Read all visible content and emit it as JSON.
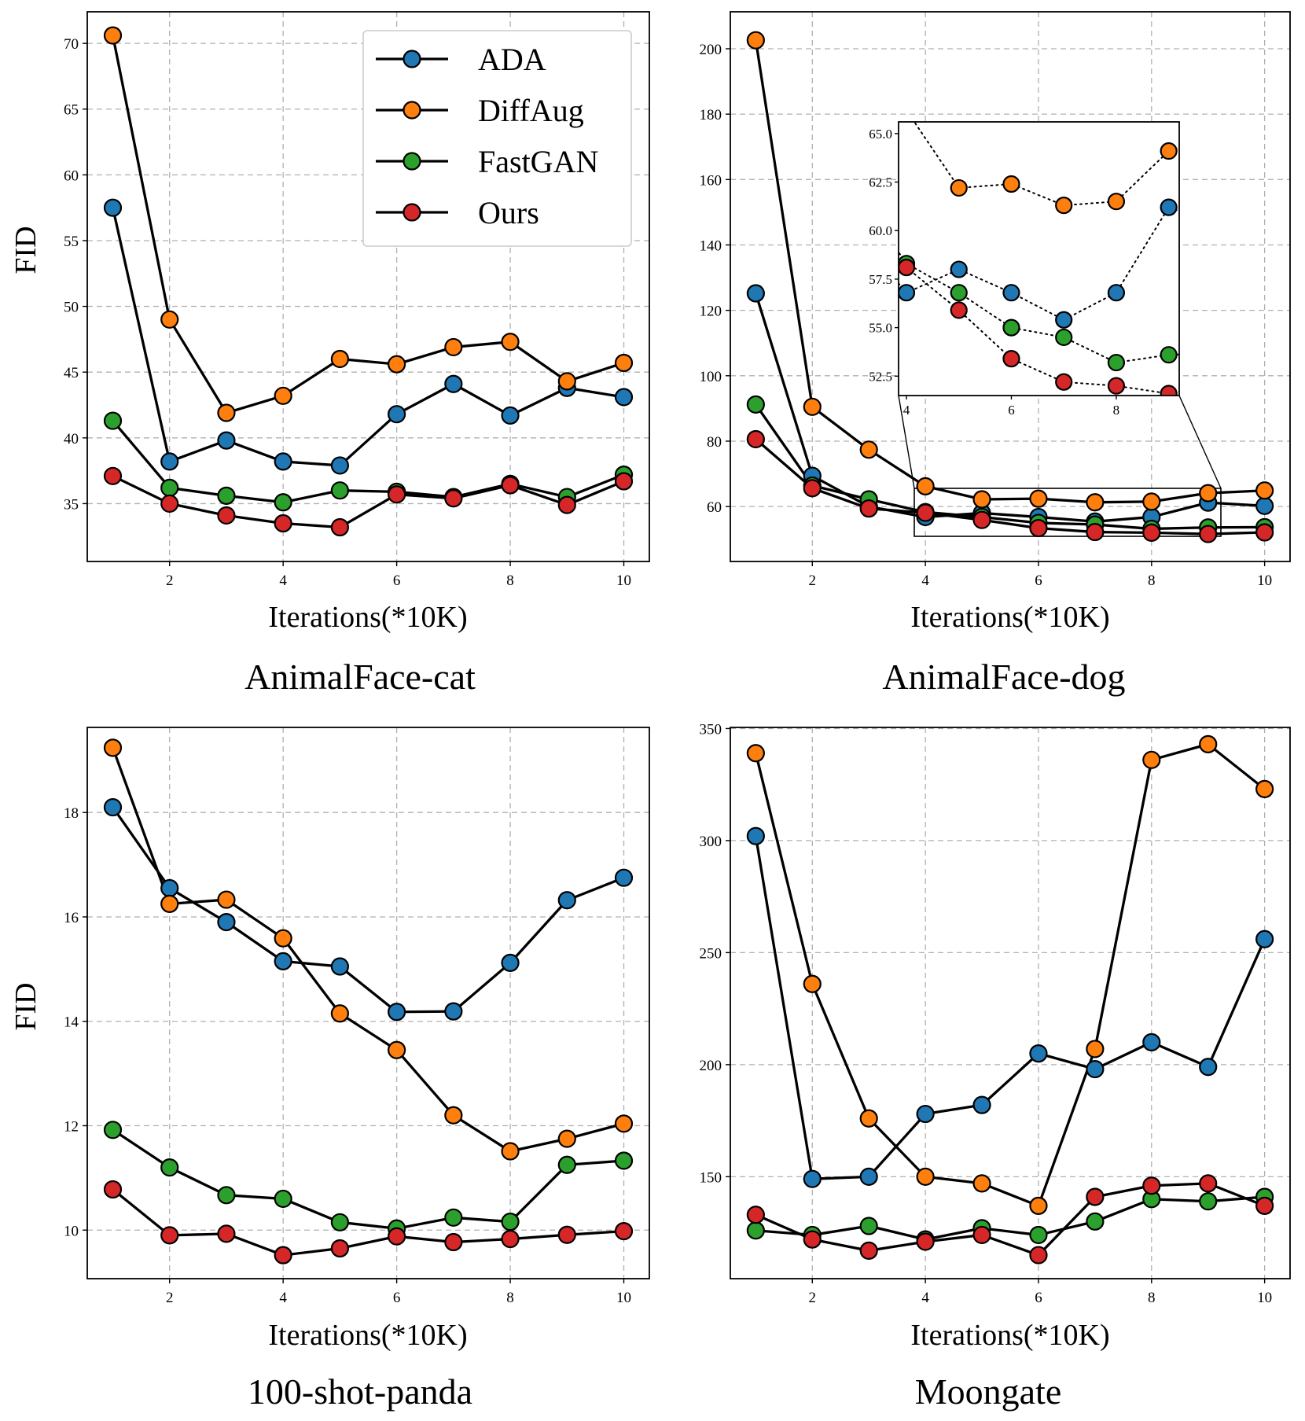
{
  "figure": {
    "y_axis_title": "FID"
  },
  "chart_data": [
    {
      "type": "line",
      "title": "AnimalFace-cat",
      "xlabel": "Iterations(*10K)",
      "ylabel": "FID",
      "xlim": [
        0.55,
        10.45
      ],
      "ylim": [
        30.6,
        72.4
      ],
      "xticks": [
        2,
        4,
        6,
        8,
        10
      ],
      "yticks": [
        35,
        40,
        45,
        50,
        55,
        60,
        65,
        70
      ],
      "grid": true,
      "legend": "top-right",
      "x": [
        1,
        2,
        3,
        4,
        5,
        6,
        7,
        8,
        9,
        10
      ],
      "series": [
        {
          "name": "ADA",
          "color": "#1f77b4",
          "values": [
            57.5,
            38.2,
            39.8,
            38.2,
            37.9,
            41.8,
            44.1,
            41.7,
            43.8,
            43.1
          ]
        },
        {
          "name": "DiffAug",
          "color": "#ff7f0e",
          "values": [
            70.6,
            49.0,
            41.9,
            43.2,
            46.0,
            45.6,
            46.9,
            47.3,
            44.3,
            45.7
          ]
        },
        {
          "name": "FastGAN",
          "color": "#2ca02c",
          "values": [
            41.3,
            36.2,
            35.6,
            35.1,
            36.0,
            35.9,
            35.5,
            36.5,
            35.5,
            37.2
          ]
        },
        {
          "name": "Ours",
          "color": "#d62728",
          "values": [
            37.1,
            35.0,
            34.1,
            33.5,
            33.2,
            35.7,
            35.4,
            36.4,
            34.9,
            36.7
          ]
        }
      ]
    },
    {
      "type": "line",
      "title": "AnimalFace-dog",
      "xlabel": "Iterations(*10K)",
      "ylabel": "",
      "xlim": [
        0.55,
        10.45
      ],
      "ylim": [
        43.2,
        211.3
      ],
      "xticks": [
        2,
        4,
        6,
        8,
        10
      ],
      "yticks": [
        60,
        80,
        100,
        120,
        140,
        160,
        180,
        200
      ],
      "grid": true,
      "x": [
        1,
        2,
        3,
        4,
        5,
        6,
        7,
        8,
        9,
        10
      ],
      "series": [
        {
          "name": "ADA",
          "color": "#1f77b4",
          "values": [
            125.2,
            69.4,
            60.0,
            56.8,
            58.0,
            56.8,
            55.4,
            56.8,
            61.2,
            60.2
          ]
        },
        {
          "name": "DiffAug",
          "color": "#ff7f0e",
          "values": [
            202.6,
            90.5,
            77.4,
            66.2,
            62.2,
            62.4,
            61.3,
            61.5,
            64.1,
            64.9
          ]
        },
        {
          "name": "FastGAN",
          "color": "#2ca02c",
          "values": [
            91.2,
            66.4,
            62.2,
            58.3,
            56.8,
            55.0,
            54.5,
            53.2,
            53.6,
            53.7
          ]
        },
        {
          "name": "Ours",
          "color": "#d62728",
          "values": [
            80.6,
            65.6,
            59.4,
            58.1,
            55.9,
            53.4,
            52.2,
            52.0,
            51.6,
            52.1
          ]
        }
      ],
      "inset": {
        "xlim": [
          3.85,
          9.2
        ],
        "ylim": [
          51.5,
          65.6
        ],
        "xticks": [
          4,
          6,
          8
        ],
        "yticks": [
          52.5,
          55.0,
          57.5,
          60.0,
          62.5,
          65.0
        ],
        "ytick_labels": [
          "52.5",
          "55.0",
          "57.5",
          "60.0",
          "62.5",
          "65.0"
        ]
      }
    },
    {
      "type": "line",
      "title": "100-shot-panda",
      "xlabel": "Iterations(*10K)",
      "ylabel": "FID",
      "xlim": [
        0.55,
        10.45
      ],
      "ylim": [
        9.07,
        19.63
      ],
      "xticks": [
        2,
        4,
        6,
        8,
        10
      ],
      "yticks": [
        10,
        12,
        14,
        16,
        18
      ],
      "grid": true,
      "x": [
        1,
        2,
        3,
        4,
        5,
        6,
        7,
        8,
        9,
        10
      ],
      "series": [
        {
          "name": "ADA",
          "color": "#1f77b4",
          "values": [
            18.1,
            16.55,
            15.9,
            15.15,
            15.05,
            14.18,
            14.19,
            15.12,
            16.32,
            16.75
          ]
        },
        {
          "name": "DiffAug",
          "color": "#ff7f0e",
          "values": [
            19.24,
            16.25,
            16.33,
            15.59,
            14.15,
            13.45,
            12.2,
            11.51,
            11.75,
            12.04
          ]
        },
        {
          "name": "FastGAN",
          "color": "#2ca02c",
          "values": [
            11.92,
            11.2,
            10.67,
            10.6,
            10.15,
            10.03,
            10.24,
            10.16,
            11.25,
            11.33
          ]
        },
        {
          "name": "Ours",
          "color": "#d62728",
          "values": [
            10.78,
            9.9,
            9.93,
            9.52,
            9.65,
            9.88,
            9.77,
            9.83,
            9.91,
            9.98
          ]
        }
      ]
    },
    {
      "type": "line",
      "title": "Moongate",
      "xlabel": "Iterations(*10K)",
      "ylabel": "",
      "xlim": [
        0.55,
        10.45
      ],
      "ylim": [
        104.5,
        350.5
      ],
      "xticks": [
        2,
        4,
        6,
        8,
        10
      ],
      "yticks": [
        150,
        200,
        250,
        300,
        350
      ],
      "grid": true,
      "x": [
        1,
        2,
        3,
        4,
        5,
        6,
        7,
        8,
        9,
        10
      ],
      "series": [
        {
          "name": "ADA",
          "color": "#1f77b4",
          "values": [
            302,
            149,
            150,
            178,
            182,
            205,
            198,
            210,
            199,
            256
          ]
        },
        {
          "name": "DiffAug",
          "color": "#ff7f0e",
          "values": [
            339,
            236,
            176,
            150,
            147,
            137,
            207,
            336,
            343,
            323
          ]
        },
        {
          "name": "FastGAN",
          "color": "#2ca02c",
          "values": [
            126,
            124,
            128,
            122,
            127,
            124,
            130,
            140,
            139,
            141
          ]
        },
        {
          "name": "Ours",
          "color": "#d62728",
          "values": [
            133,
            122,
            117,
            121,
            124,
            115,
            141,
            146,
            147,
            137
          ]
        }
      ]
    }
  ]
}
